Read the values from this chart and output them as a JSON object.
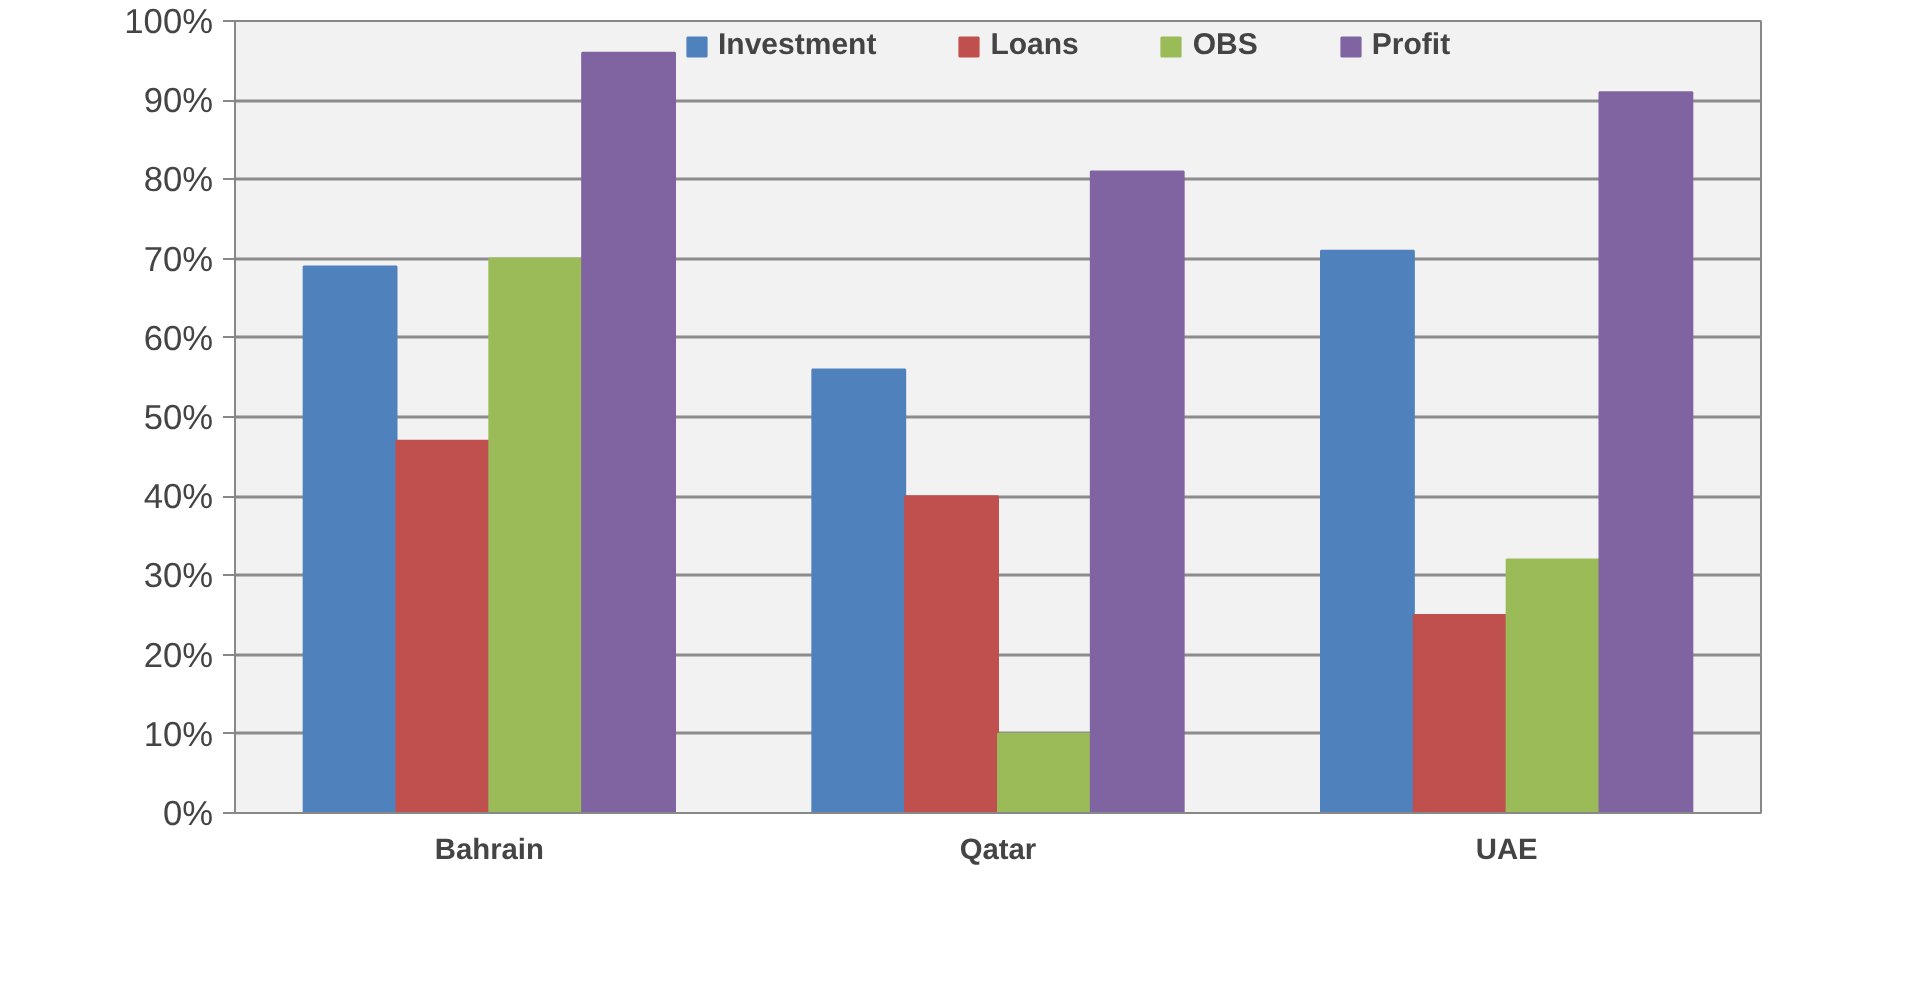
{
  "chart_data": {
    "type": "bar",
    "categories": [
      "Bahrain",
      "Qatar",
      "UAE"
    ],
    "series": [
      {
        "name": "Investment",
        "color": "#4f81bd",
        "values": [
          69,
          56,
          71
        ]
      },
      {
        "name": "Loans",
        "color": "#c0504d",
        "values": [
          47,
          40,
          25
        ]
      },
      {
        "name": "OBS",
        "color": "#9bbb59",
        "values": [
          70,
          10,
          32
        ]
      },
      {
        "name": "Profit",
        "color": "#8064a2",
        "values": [
          96,
          81,
          91
        ]
      }
    ],
    "ylim": [
      0,
      100
    ],
    "yticks": [
      {
        "value": 0,
        "label": "0%"
      },
      {
        "value": 10,
        "label": "10%"
      },
      {
        "value": 20,
        "label": "20%"
      },
      {
        "value": 30,
        "label": "30%"
      },
      {
        "value": 40,
        "label": "40%"
      },
      {
        "value": 50,
        "label": "50%"
      },
      {
        "value": 60,
        "label": "60%"
      },
      {
        "value": 70,
        "label": "70%"
      },
      {
        "value": 80,
        "label": "80%"
      },
      {
        "value": 90,
        "label": "90%"
      },
      {
        "value": 100,
        "label": "100%"
      }
    ],
    "grid": "y",
    "legend": "top"
  }
}
